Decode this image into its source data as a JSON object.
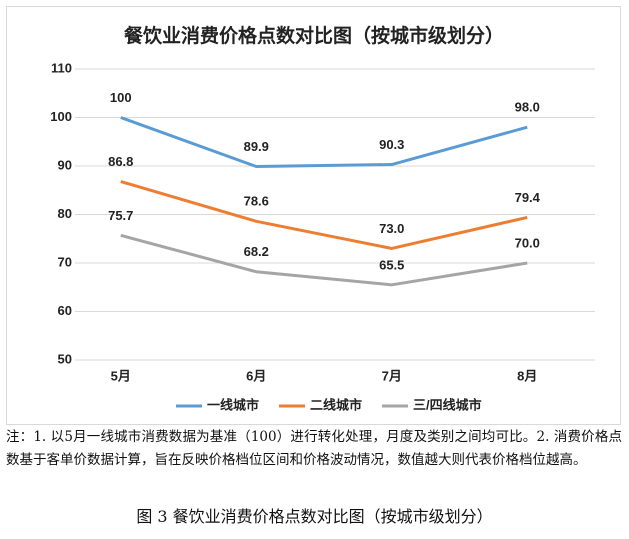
{
  "chart_data": {
    "type": "line",
    "title": "餐饮业消费价格点数对比图（按城市级划分）",
    "categories": [
      "5月",
      "6月",
      "7月",
      "8月"
    ],
    "series": [
      {
        "name": "一线城市",
        "color": "#5b9bd5",
        "values": [
          100,
          89.9,
          90.3,
          98
        ],
        "value_labels": [
          "100",
          "89.9",
          "90.3",
          "98.0"
        ]
      },
      {
        "name": "二线城市",
        "color": "#ed7d31",
        "values": [
          86.8,
          78.6,
          73,
          79.4
        ],
        "value_labels": [
          "86.8",
          "78.6",
          "73.0",
          "79.4"
        ]
      },
      {
        "name": "三/四线城市",
        "color": "#a5a5a5",
        "values": [
          75.7,
          68.2,
          65.5,
          70
        ],
        "value_labels": [
          "75.7",
          "68.2",
          "65.5",
          "70.0"
        ]
      }
    ],
    "ylim": [
      50,
      110
    ],
    "yticks": [
      50,
      60,
      70,
      80,
      90,
      100,
      110
    ],
    "grid": true,
    "legend": "bottom"
  },
  "note": "注：1. 以5月一线城市消费数据为基准（100）进行转化处理，月度及类别之间均可比。2. 消费价格点数基于客单价数据计算，旨在反映价格档位区间和价格波动情况，数值越大则代表价格档位越高。",
  "caption": "图 3  餐饮业消费价格点数对比图（按城市级划分）"
}
